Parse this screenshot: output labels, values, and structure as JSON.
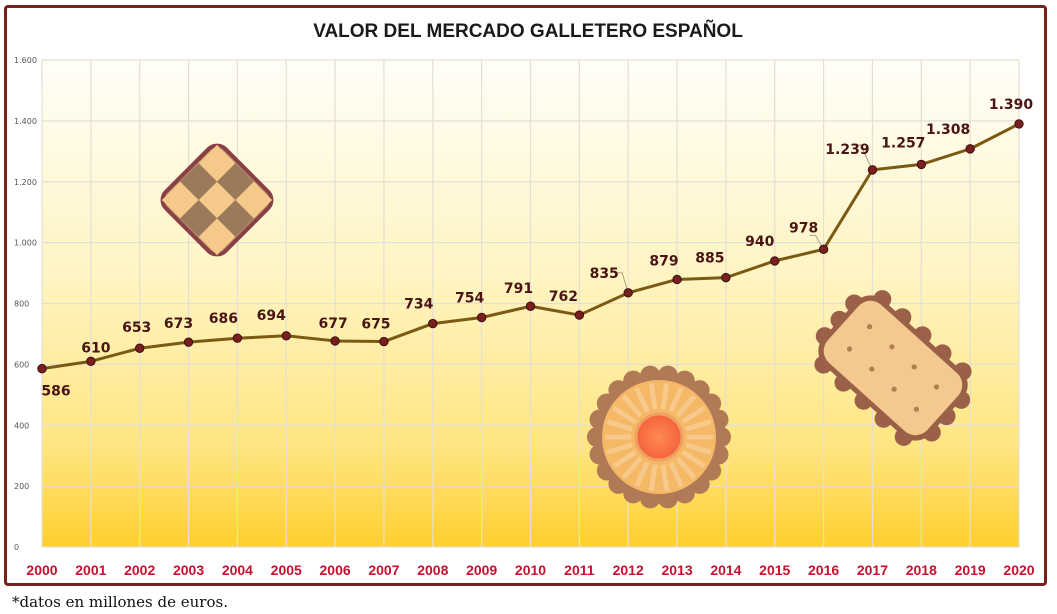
{
  "chart_data": {
    "type": "line",
    "title": "VALOR DEL MERCADO GALLETERO ESPAÑOL",
    "x": [
      "2000",
      "2001",
      "2002",
      "2003",
      "2004",
      "2005",
      "2006",
      "2007",
      "2008",
      "2009",
      "2010",
      "2011",
      "2012",
      "2013",
      "2014",
      "2015",
      "2016",
      "2017",
      "2018",
      "2019",
      "2020"
    ],
    "values": [
      586,
      610,
      653,
      673,
      686,
      694,
      677,
      675,
      734,
      754,
      791,
      762,
      835,
      879,
      885,
      940,
      978,
      1239,
      1257,
      1308,
      1390
    ],
    "value_labels": [
      "586",
      "610",
      "653",
      "673",
      "686",
      "694",
      "677",
      "675",
      "734",
      "754",
      "791",
      "762",
      "835",
      "879",
      "885",
      "940",
      "978",
      "1.239",
      "1.257",
      "1.308",
      "1.390"
    ],
    "ylim": [
      0,
      1600
    ],
    "yticks": [
      0,
      200,
      400,
      600,
      800,
      1000,
      1200,
      1400,
      1600
    ],
    "ytick_labels": [
      "0",
      "200",
      "400",
      "600",
      "800",
      "1.000",
      "1.200",
      "1.400",
      "1.600"
    ],
    "grid": true,
    "line_color": "#7a5a12",
    "marker_color": "#7a1f1f",
    "label_color": "#4a1414",
    "xtick_color": "#c8102e",
    "frame_color": "#7a1f1f",
    "background_gradient": [
      "#fffdf3",
      "#ffdd55"
    ],
    "decorations": [
      "checkered-cookie-icon",
      "flower-jam-cookie-icon",
      "cracker-biscuit-icon"
    ]
  },
  "footnote": "*datos en millones de euros."
}
